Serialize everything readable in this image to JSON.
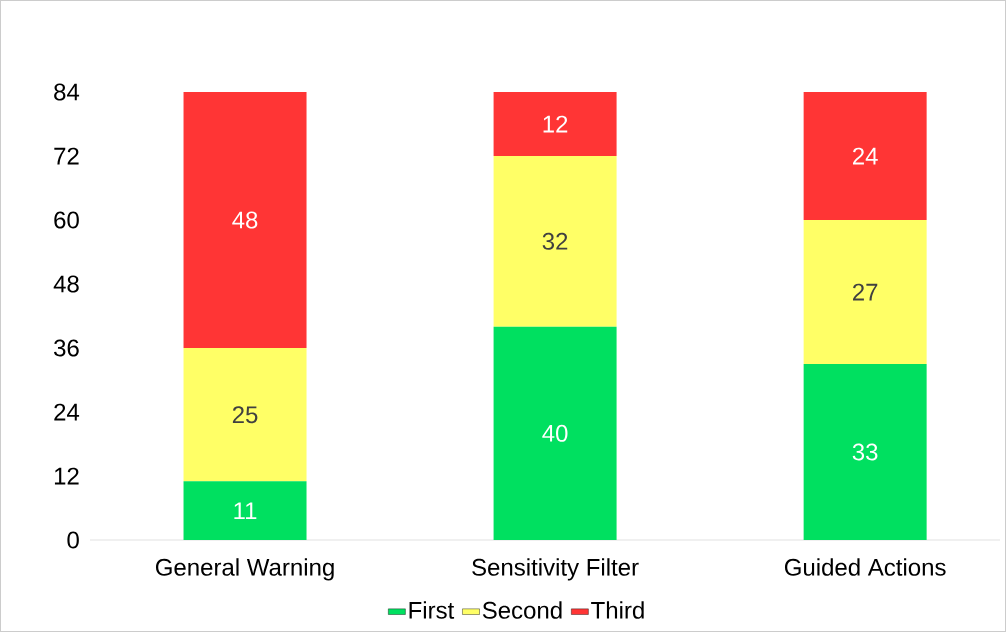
{
  "chart_data": {
    "type": "bar",
    "stacked": true,
    "categories": [
      "General Warning",
      "Sensitivity Filter",
      "Guided Actions"
    ],
    "series": [
      {
        "name": "First",
        "color": "#00e060",
        "values": [
          11,
          40,
          33
        ]
      },
      {
        "name": "Second",
        "color": "#ffff66",
        "values": [
          25,
          32,
          27
        ]
      },
      {
        "name": "Third",
        "color": "#ff3535",
        "values": [
          48,
          12,
          24
        ]
      }
    ],
    "ylim": [
      0,
      84
    ],
    "yticks": [
      0,
      12,
      24,
      36,
      48,
      60,
      72,
      84
    ],
    "data_labels": true,
    "legend": "bottom",
    "grid": false
  }
}
